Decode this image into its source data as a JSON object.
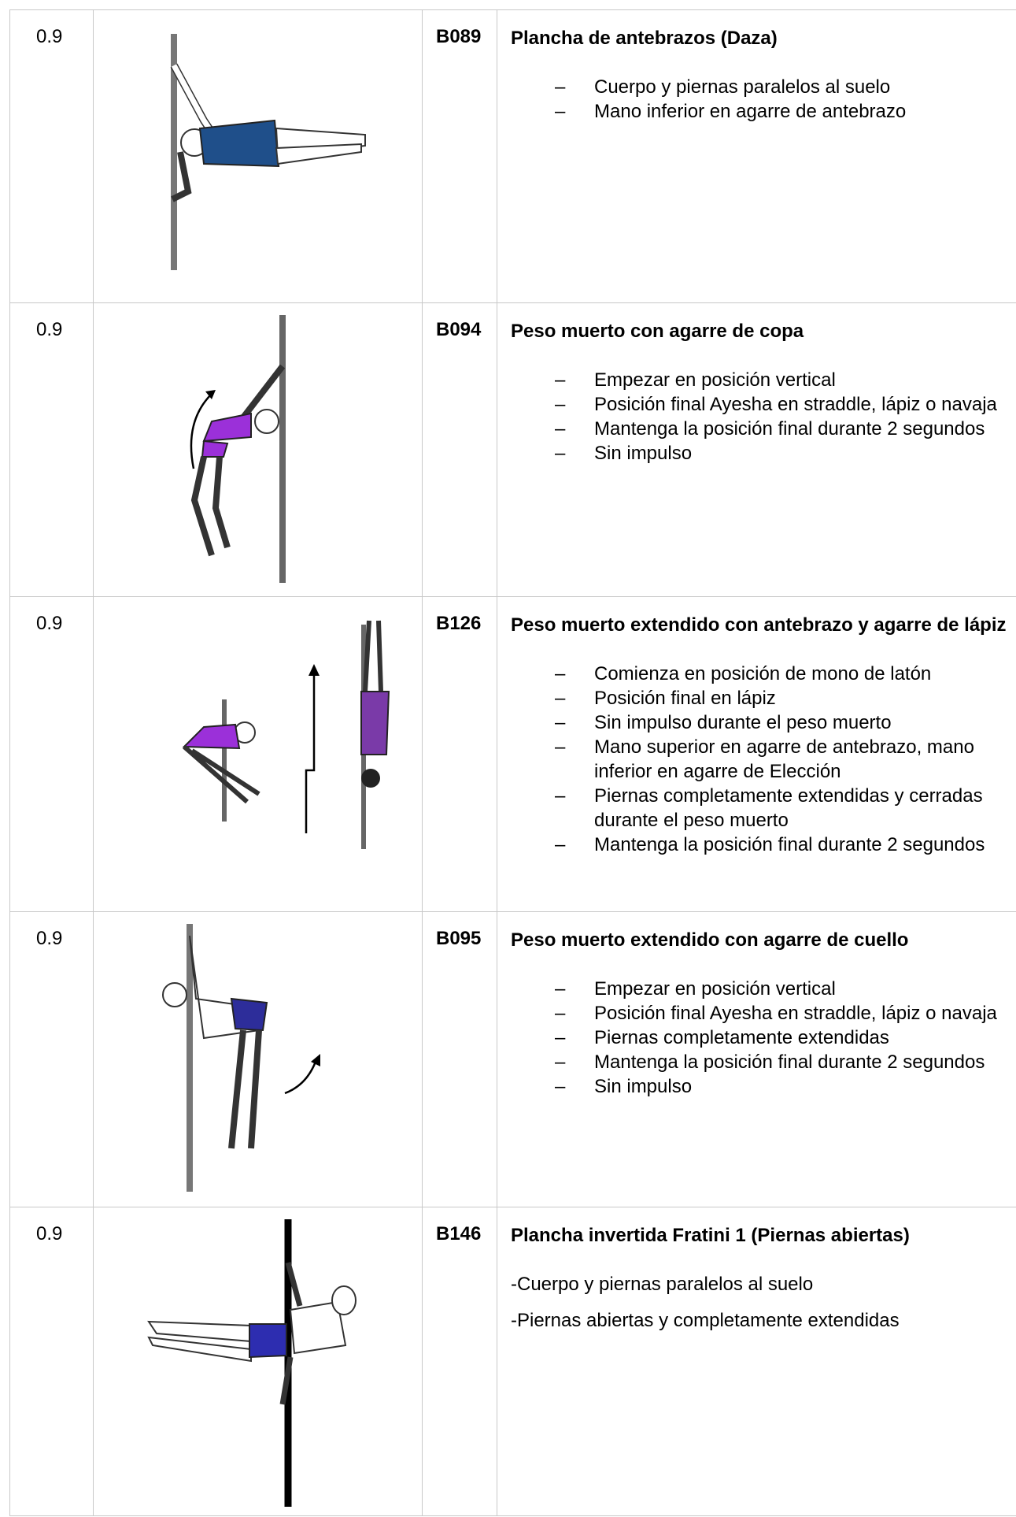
{
  "rows": [
    {
      "score": "0.9",
      "code": "B089",
      "title": "Plancha de antebrazos (Daza)",
      "bullets": [
        "Cuerpo y piernas paralelos al suelo",
        "Mano inferior en agarre de antebrazo"
      ]
    },
    {
      "score": "0.9",
      "code": "B094",
      "title": "Peso muerto con agarre de copa",
      "bullets": [
        "Empezar en posición vertical",
        "Posición final Ayesha en straddle, lápiz o navaja",
        "Mantenga la posición final durante 2 segundos",
        "Sin impulso"
      ]
    },
    {
      "score": "0.9",
      "code": "B126",
      "title": "Peso muerto extendido con antebrazo y agarre de lápiz",
      "bullets": [
        "Comienza en posición de mono de latón",
        "Posición final en lápiz",
        "Sin impulso durante el peso muerto",
        "Mano superior en agarre de antebrazo, mano inferior en agarre de Elección",
        "Piernas completamente extendidas y cerradas durante el peso muerto",
        "Mantenga la posición final durante 2 segundos"
      ]
    },
    {
      "score": "0.9",
      "code": "B095",
      "title": "Peso muerto extendido con agarre de cuello",
      "bullets": [
        "Empezar en posición vertical",
        "Posición final Ayesha en straddle, lápiz o navaja",
        "Piernas completamente extendidas",
        "Mantenga la posición final durante 2 segundos",
        "Sin impulso"
      ]
    },
    {
      "score": "0.9",
      "code": "B146",
      "title": "Plancha invertida Fratini 1 (Piernas abiertas)",
      "paragraphs": [
        "-Cuerpo y piernas paralelos al suelo",
        "-Piernas abiertas y completamente extendidas"
      ]
    }
  ]
}
